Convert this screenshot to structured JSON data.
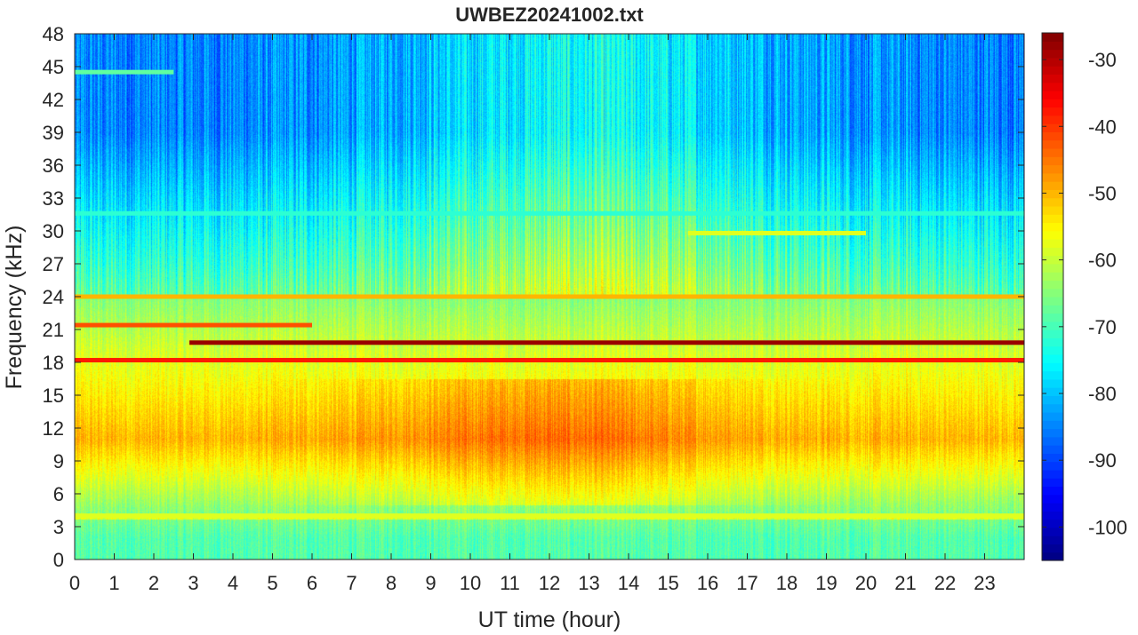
{
  "chart_data": {
    "type": "heatmap",
    "title": "UWBEZ20241002.txt",
    "xlabel": "UT time (hour)",
    "ylabel": "Frequency (kHz)",
    "xlim": [
      0,
      24
    ],
    "ylim": [
      0,
      48
    ],
    "x_ticks": [
      0,
      1,
      2,
      3,
      4,
      5,
      6,
      7,
      8,
      9,
      10,
      11,
      12,
      13,
      14,
      15,
      16,
      17,
      18,
      19,
      20,
      21,
      22,
      23
    ],
    "y_ticks": [
      0,
      3,
      6,
      9,
      12,
      15,
      18,
      21,
      24,
      27,
      30,
      33,
      36,
      39,
      42,
      45,
      48
    ],
    "colorbar": {
      "colormap": "jet",
      "clim": [
        -105,
        -26
      ],
      "ticks": [
        -30,
        -40,
        -50,
        -60,
        -70,
        -80,
        -90,
        -100
      ]
    },
    "noise_bands": [
      {
        "f_lo": 0.0,
        "f_hi": 4.0,
        "level": -69
      },
      {
        "f_lo": 4.0,
        "f_hi": 6.0,
        "level": -64
      },
      {
        "f_lo": 6.0,
        "f_hi": 16.0,
        "level": -50
      },
      {
        "f_lo": 16.0,
        "f_hi": 24.0,
        "level": -60
      },
      {
        "f_lo": 24.0,
        "f_hi": 30.0,
        "level": -69
      },
      {
        "f_lo": 30.0,
        "f_hi": 48.0,
        "level": -82
      }
    ],
    "transmitter_lines": [
      {
        "freq_khz": 19.8,
        "t_start": 2.9,
        "t_end": 24.0,
        "level": -28
      },
      {
        "freq_khz": 18.2,
        "t_start": 0.0,
        "t_end": 24.0,
        "level": -38
      },
      {
        "freq_khz": 21.4,
        "t_start": 0.0,
        "t_end": 6.0,
        "level": -42
      },
      {
        "freq_khz": 24.0,
        "t_start": 0.0,
        "t_end": 24.0,
        "level": -50
      },
      {
        "freq_khz": 4.0,
        "t_start": 0.0,
        "t_end": 24.0,
        "level": -58
      },
      {
        "freq_khz": 29.8,
        "t_start": 15.5,
        "t_end": 20.0,
        "level": -58
      },
      {
        "freq_khz": 44.5,
        "t_start": 0.0,
        "t_end": 2.5,
        "level": -68
      },
      {
        "freq_khz": 31.6,
        "t_start": 0.0,
        "t_end": 24.0,
        "level": -72
      }
    ]
  }
}
